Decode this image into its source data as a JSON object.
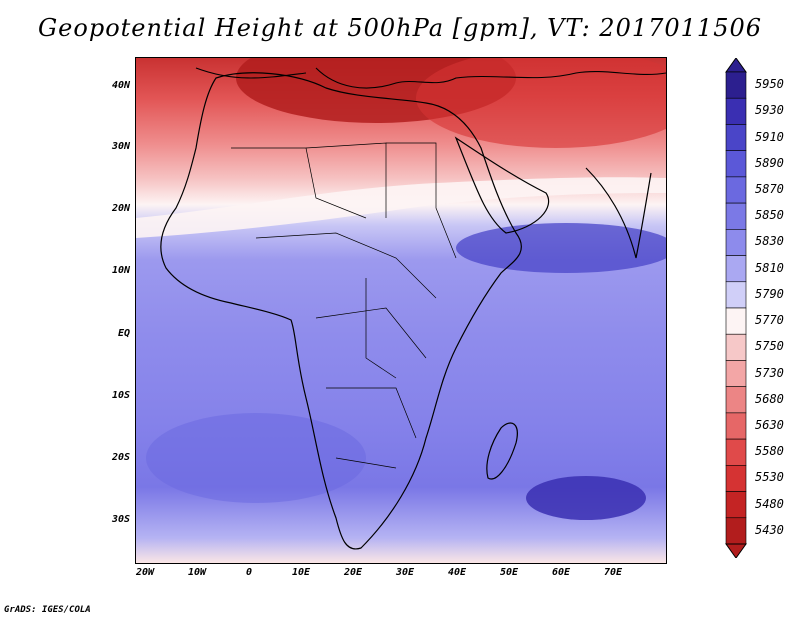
{
  "title": "Geopotential Height at 500hPa [gpm], VT: 2017011506",
  "credit": "GrADS: IGES/COLA",
  "map": {
    "lat_labels": [
      "40N",
      "30N",
      "20N",
      "10N",
      "EQ",
      "10S",
      "20S",
      "30S"
    ],
    "lon_labels": [
      "20W",
      "10W",
      "0",
      "10E",
      "20E",
      "30E",
      "40E",
      "50E",
      "60E",
      "70E"
    ],
    "region": "Africa / Middle East",
    "colors": {
      "deep_red": "#b21d1d",
      "red": "#e0494a",
      "pink": "#f3a6a6",
      "white": "#fdf4f4",
      "light_purple": "#a9a6f0",
      "purple": "#7f7be9",
      "deep_purple": "#4a45c8"
    }
  },
  "colorbar": {
    "labels": [
      "5950",
      "5930",
      "5910",
      "5890",
      "5870",
      "5850",
      "5830",
      "5810",
      "5790",
      "5770",
      "5750",
      "5730",
      "5680",
      "5630",
      "5580",
      "5530",
      "5480",
      "5430"
    ],
    "colors": [
      "#2c1f8f",
      "#3a2fb2",
      "#4a45c8",
      "#5b58d8",
      "#6b69e0",
      "#7b79e6",
      "#8d8bec",
      "#aaa8f2",
      "#d0cff8",
      "#fdf4f4",
      "#f6c8c8",
      "#f3a6a6",
      "#ec8585",
      "#e66767",
      "#e04a4a",
      "#d53333",
      "#c42424",
      "#b21d1d"
    ]
  }
}
